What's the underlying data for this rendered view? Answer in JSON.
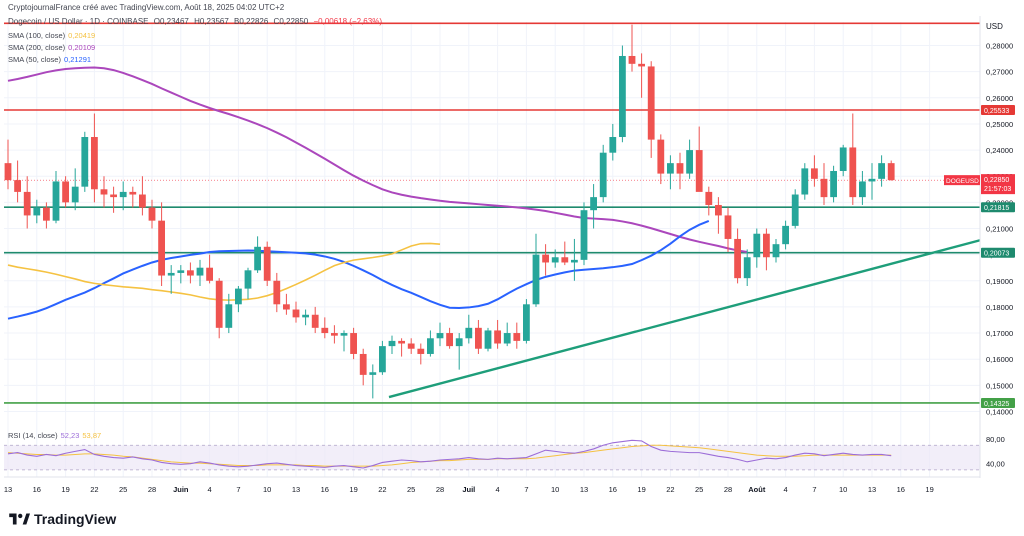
{
  "header": {
    "created": "CryptojournalFrance créé avec TradingView.com, Août 18, 2025 04:02 UTC+2",
    "symbol": "Dogecoin / US Dollar · 1D · COINBASE",
    "ohlc": [
      "O0,23467",
      "H0,23567",
      "B0,22826",
      "C0,22850",
      "−0,00618 (−2,63%)"
    ]
  },
  "indicators": [
    {
      "label": "SMA (100, close)",
      "value": "0,20419",
      "color": "#f5c242"
    },
    {
      "label": "SMA (200, close)",
      "value": "0,20109",
      "color": "#ab47bc"
    },
    {
      "label": "SMA (50, close)",
      "value": "0,21291",
      "color": "#2962ff"
    }
  ],
  "rsi_label": {
    "label": "RSI (14, close)",
    "value": "52,23",
    "value2": "53,87"
  },
  "footer": {
    "brand": "TradingView"
  },
  "chart_data": {
    "type": "candlestick",
    "unit": "USD",
    "ylim": [
      0.1375,
      0.289
    ],
    "y_ticks": [
      "0,28000",
      "0,27000",
      "0,26000",
      "0,25000",
      "0,24000",
      "0,23000",
      "0,22000",
      "0,21000",
      "0,20000",
      "0,19000",
      "0,18000",
      "0,17000",
      "0,16000",
      "0,15000",
      "0,14000"
    ],
    "y_tick_values": [
      0.28,
      0.27,
      0.26,
      0.25,
      0.24,
      0.23,
      0.22,
      0.21,
      0.2,
      0.19,
      0.18,
      0.17,
      0.16,
      0.15,
      0.14
    ],
    "x_ticks": [
      "13",
      "16",
      "19",
      "22",
      "25",
      "28",
      "Juin",
      "4",
      "7",
      "10",
      "13",
      "16",
      "19",
      "22",
      "25",
      "28",
      "Juil",
      "4",
      "7",
      "10",
      "13",
      "16",
      "19",
      "22",
      "25",
      "28",
      "Août",
      "4",
      "7",
      "10",
      "13",
      "16",
      "19"
    ],
    "horizontal_lines": [
      {
        "value": 0.2885,
        "label": "",
        "color": "#e53935"
      },
      {
        "value": 0.25533,
        "label": "0,25533",
        "color": "#e53935"
      },
      {
        "value": 0.21815,
        "label": "0,21815",
        "color": "#1e8a6e"
      },
      {
        "value": 0.20073,
        "label": "0,20073",
        "color": "#1e8a6e"
      },
      {
        "value": 0.14325,
        "label": "0,14325",
        "color": "#43a047"
      }
    ],
    "price_label": {
      "symbol": "DOGEUSD",
      "value": "0,22850",
      "countdown": "21:57:03",
      "color": "#f23645"
    },
    "trendline": {
      "from": [
        127,
        0.1455
      ],
      "to": [
        311,
        0.2055
      ],
      "color": "#1e9e7a"
    },
    "colors": {
      "up": "#26a69a",
      "down": "#ef5350",
      "sma50": "#2962ff",
      "sma100": "#f5c242",
      "sma200": "#ab47bc",
      "rsi": "#9c6dd8"
    },
    "candles": [
      [
        0.235,
        0.244,
        0.225,
        0.2285
      ],
      [
        0.2285,
        0.236,
        0.22,
        0.224
      ],
      [
        0.224,
        0.23,
        0.21,
        0.215
      ],
      [
        0.215,
        0.221,
        0.212,
        0.218
      ],
      [
        0.218,
        0.22,
        0.21,
        0.213
      ],
      [
        0.213,
        0.232,
        0.212,
        0.228
      ],
      [
        0.228,
        0.23,
        0.218,
        0.22
      ],
      [
        0.22,
        0.233,
        0.217,
        0.226
      ],
      [
        0.226,
        0.247,
        0.224,
        0.245
      ],
      [
        0.245,
        0.254,
        0.22,
        0.225
      ],
      [
        0.225,
        0.23,
        0.218,
        0.223
      ],
      [
        0.223,
        0.226,
        0.216,
        0.222
      ],
      [
        0.222,
        0.228,
        0.217,
        0.224
      ],
      [
        0.224,
        0.226,
        0.218,
        0.223
      ],
      [
        0.223,
        0.23,
        0.215,
        0.218
      ],
      [
        0.218,
        0.221,
        0.21,
        0.213
      ],
      [
        0.213,
        0.22,
        0.188,
        0.192
      ],
      [
        0.192,
        0.196,
        0.185,
        0.193
      ],
      [
        0.193,
        0.196,
        0.189,
        0.194
      ],
      [
        0.194,
        0.197,
        0.189,
        0.192
      ],
      [
        0.192,
        0.198,
        0.188,
        0.195
      ],
      [
        0.195,
        0.2,
        0.189,
        0.19
      ],
      [
        0.19,
        0.191,
        0.168,
        0.172
      ],
      [
        0.172,
        0.185,
        0.17,
        0.181
      ],
      [
        0.181,
        0.188,
        0.178,
        0.187
      ],
      [
        0.187,
        0.195,
        0.183,
        0.194
      ],
      [
        0.194,
        0.207,
        0.193,
        0.203
      ],
      [
        0.203,
        0.205,
        0.188,
        0.19
      ],
      [
        0.19,
        0.193,
        0.178,
        0.181
      ],
      [
        0.181,
        0.185,
        0.177,
        0.179
      ],
      [
        0.179,
        0.182,
        0.174,
        0.176
      ],
      [
        0.176,
        0.179,
        0.173,
        0.177
      ],
      [
        0.177,
        0.18,
        0.17,
        0.172
      ],
      [
        0.172,
        0.176,
        0.168,
        0.17
      ],
      [
        0.17,
        0.173,
        0.166,
        0.169
      ],
      [
        0.169,
        0.171,
        0.163,
        0.17
      ],
      [
        0.17,
        0.172,
        0.16,
        0.162
      ],
      [
        0.162,
        0.164,
        0.15,
        0.154
      ],
      [
        0.154,
        0.158,
        0.145,
        0.155
      ],
      [
        0.155,
        0.167,
        0.154,
        0.165
      ],
      [
        0.165,
        0.169,
        0.162,
        0.167
      ],
      [
        0.167,
        0.168,
        0.161,
        0.166
      ],
      [
        0.166,
        0.168,
        0.162,
        0.164
      ],
      [
        0.164,
        0.166,
        0.158,
        0.162
      ],
      [
        0.162,
        0.171,
        0.161,
        0.168
      ],
      [
        0.168,
        0.174,
        0.165,
        0.17
      ],
      [
        0.17,
        0.172,
        0.164,
        0.165
      ],
      [
        0.165,
        0.17,
        0.156,
        0.168
      ],
      [
        0.168,
        0.177,
        0.166,
        0.172
      ],
      [
        0.172,
        0.175,
        0.162,
        0.164
      ],
      [
        0.164,
        0.172,
        0.163,
        0.171
      ],
      [
        0.171,
        0.175,
        0.164,
        0.166
      ],
      [
        0.166,
        0.174,
        0.165,
        0.17
      ],
      [
        0.17,
        0.174,
        0.164,
        0.167
      ],
      [
        0.167,
        0.183,
        0.166,
        0.181
      ],
      [
        0.181,
        0.208,
        0.18,
        0.2
      ],
      [
        0.2,
        0.204,
        0.192,
        0.197
      ],
      [
        0.197,
        0.202,
        0.195,
        0.199
      ],
      [
        0.199,
        0.205,
        0.196,
        0.197
      ],
      [
        0.197,
        0.206,
        0.19,
        0.198
      ],
      [
        0.198,
        0.22,
        0.196,
        0.217
      ],
      [
        0.217,
        0.227,
        0.21,
        0.222
      ],
      [
        0.222,
        0.242,
        0.22,
        0.239
      ],
      [
        0.239,
        0.25,
        0.236,
        0.245
      ],
      [
        0.245,
        0.28,
        0.243,
        0.276
      ],
      [
        0.276,
        0.288,
        0.27,
        0.273
      ],
      [
        0.273,
        0.277,
        0.26,
        0.272
      ],
      [
        0.272,
        0.274,
        0.237,
        0.244
      ],
      [
        0.244,
        0.246,
        0.227,
        0.231
      ],
      [
        0.231,
        0.238,
        0.225,
        0.235
      ],
      [
        0.235,
        0.239,
        0.225,
        0.231
      ],
      [
        0.231,
        0.244,
        0.229,
        0.24
      ],
      [
        0.24,
        0.249,
        0.225,
        0.224
      ],
      [
        0.224,
        0.226,
        0.215,
        0.219
      ],
      [
        0.219,
        0.222,
        0.208,
        0.215
      ],
      [
        0.215,
        0.218,
        0.201,
        0.206
      ],
      [
        0.206,
        0.21,
        0.189,
        0.191
      ],
      [
        0.191,
        0.202,
        0.188,
        0.199
      ],
      [
        0.199,
        0.21,
        0.195,
        0.208
      ],
      [
        0.208,
        0.21,
        0.194,
        0.199
      ],
      [
        0.199,
        0.206,
        0.197,
        0.204
      ],
      [
        0.204,
        0.213,
        0.202,
        0.211
      ],
      [
        0.211,
        0.225,
        0.21,
        0.223
      ],
      [
        0.223,
        0.235,
        0.221,
        0.233
      ],
      [
        0.233,
        0.238,
        0.226,
        0.229
      ],
      [
        0.229,
        0.235,
        0.219,
        0.222
      ],
      [
        0.222,
        0.234,
        0.22,
        0.232
      ],
      [
        0.232,
        0.242,
        0.23,
        0.241
      ],
      [
        0.241,
        0.254,
        0.219,
        0.222
      ],
      [
        0.222,
        0.232,
        0.219,
        0.228
      ],
      [
        0.228,
        0.235,
        0.221,
        0.229
      ],
      [
        0.229,
        0.238,
        0.226,
        0.235
      ],
      [
        0.235,
        0.236,
        0.2283,
        0.2285
      ]
    ],
    "sma200": [
      0.2665,
      0.2672,
      0.268,
      0.2689,
      0.2698,
      0.2705,
      0.271,
      0.2713,
      0.2715,
      0.2716,
      0.2713,
      0.2706,
      0.2695,
      0.2682,
      0.2668,
      0.2653,
      0.2636,
      0.262,
      0.2604,
      0.2588,
      0.2574,
      0.2561,
      0.2549,
      0.2538,
      0.2526,
      0.2513,
      0.2499,
      0.2484,
      0.2467,
      0.2449,
      0.2429,
      0.2409,
      0.2388,
      0.2367,
      0.2345,
      0.2323,
      0.2302,
      0.2283,
      0.2266,
      0.225,
      0.2238,
      0.2229,
      0.2222,
      0.2216,
      0.2211,
      0.2206,
      0.2202,
      0.2199,
      0.2196,
      0.2193,
      0.219,
      0.2187,
      0.2184,
      0.2181,
      0.2177,
      0.2172,
      0.2167,
      0.216,
      0.2153,
      0.2146,
      0.214,
      0.2138,
      0.2136,
      0.2133,
      0.2127,
      0.212,
      0.2111,
      0.2101,
      0.209,
      0.2079,
      0.2068,
      0.2058,
      0.2049,
      0.2041,
      0.2033,
      0.2024,
      0.2016,
      0.201
    ],
    "sma50": [
      0.1755,
      0.1763,
      0.1772,
      0.1782,
      0.1795,
      0.1811,
      0.1827,
      0.1841,
      0.1855,
      0.1872,
      0.1891,
      0.1909,
      0.1928,
      0.1943,
      0.1957,
      0.197,
      0.198,
      0.1987,
      0.1993,
      0.1999,
      0.2004,
      0.201,
      0.2013,
      0.2014,
      0.2015,
      0.2016,
      0.2015,
      0.2013,
      0.2011,
      0.2009,
      0.2007,
      0.2005,
      0.2,
      0.1993,
      0.1984,
      0.1972,
      0.1957,
      0.194,
      0.1922,
      0.1902,
      0.1884,
      0.1868,
      0.1854,
      0.1838,
      0.1822,
      0.1808,
      0.1797,
      0.1796,
      0.1798,
      0.1803,
      0.1812,
      0.1829,
      0.185,
      0.187,
      0.1887,
      0.1903,
      0.1915,
      0.1924,
      0.1932,
      0.1939,
      0.1942,
      0.1945,
      0.1948,
      0.1952,
      0.1957,
      0.1964,
      0.1979,
      0.1996,
      0.2017,
      0.2042,
      0.207,
      0.2095,
      0.2114,
      0.2129
    ],
    "sma100": [
      0.196,
      0.1952,
      0.1946,
      0.194,
      0.1933,
      0.1925,
      0.1916,
      0.1907,
      0.1897,
      0.189,
      0.1885,
      0.1881,
      0.1877,
      0.1874,
      0.1871,
      0.1866,
      0.1862,
      0.1857,
      0.1852,
      0.1846,
      0.1838,
      0.1831,
      0.1827,
      0.1826,
      0.1827,
      0.1829,
      0.1834,
      0.1843,
      0.1855,
      0.187,
      0.1886,
      0.1903,
      0.1921,
      0.194,
      0.1958,
      0.197,
      0.1979,
      0.1984,
      0.1989,
      0.1995,
      0.2003,
      0.2018,
      0.2033,
      0.2042,
      0.2043,
      0.204
    ],
    "rsi": [
      56,
      58,
      54,
      52,
      55,
      53,
      57,
      60,
      63,
      55,
      52,
      50,
      49,
      51,
      48,
      46,
      42,
      40,
      39,
      40,
      43,
      41,
      38,
      36,
      35,
      36,
      38,
      40,
      41,
      39,
      37,
      36,
      35,
      34,
      36,
      37,
      35,
      33,
      37,
      42,
      44,
      46,
      45,
      43,
      44,
      46,
      47,
      48,
      50,
      48,
      47,
      49,
      48,
      49,
      50,
      56,
      62,
      60,
      58,
      57,
      60,
      64,
      70,
      74,
      76,
      78,
      77,
      68,
      62,
      60,
      59,
      58,
      58,
      55,
      52,
      50,
      47,
      43,
      46,
      49,
      48,
      50,
      54,
      57,
      56,
      53,
      55,
      57,
      55,
      54,
      55,
      55,
      53
    ],
    "rsi_ma": [
      58,
      57,
      56,
      55,
      55,
      54,
      54,
      55,
      56,
      56,
      55,
      54,
      52,
      51,
      49,
      47,
      45,
      43,
      42,
      41,
      41,
      40,
      39,
      38,
      37,
      37,
      37,
      38,
      38,
      38,
      38,
      37,
      37,
      36,
      36,
      36,
      36,
      36,
      36,
      37,
      38,
      40,
      42,
      43,
      44,
      45,
      45,
      46,
      47,
      47,
      47,
      48,
      48,
      48,
      48,
      49,
      51,
      53,
      55,
      57,
      58,
      60,
      62,
      64,
      66,
      68,
      69,
      70,
      70,
      69,
      68,
      67,
      66,
      64,
      62,
      60,
      58,
      56,
      54,
      53,
      52,
      52,
      52,
      53,
      54,
      54,
      54,
      54,
      54,
      54,
      54,
      54,
      54
    ],
    "rsi_levels": [
      "80,00",
      "40,00"
    ]
  }
}
